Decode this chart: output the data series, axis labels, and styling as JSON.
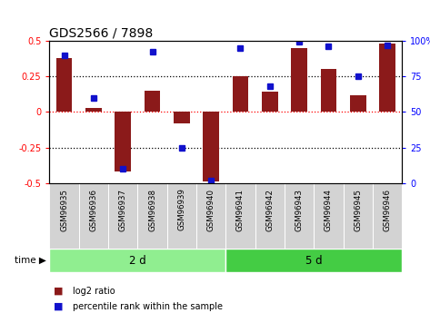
{
  "title": "GDS2566 / 7898",
  "samples": [
    "GSM96935",
    "GSM96936",
    "GSM96937",
    "GSM96938",
    "GSM96939",
    "GSM96940",
    "GSM96941",
    "GSM96942",
    "GSM96943",
    "GSM96944",
    "GSM96945",
    "GSM96946"
  ],
  "log2_ratio": [
    0.38,
    0.03,
    -0.42,
    0.15,
    -0.08,
    -0.49,
    0.25,
    0.14,
    0.45,
    0.3,
    0.12,
    0.48
  ],
  "pct_rank": [
    90,
    60,
    10,
    92,
    25,
    2,
    95,
    68,
    99,
    96,
    75,
    97
  ],
  "groups": [
    {
      "label": "2 d",
      "start": 0,
      "end": 6,
      "color": "#90EE90"
    },
    {
      "label": "5 d",
      "start": 6,
      "end": 12,
      "color": "#44CC44"
    }
  ],
  "bar_color": "#8B1A1A",
  "dot_color": "#1111CC",
  "ylim_left": [
    -0.5,
    0.5
  ],
  "ylim_right": [
    0,
    100
  ],
  "yticks_left": [
    -0.5,
    -0.25,
    0.0,
    0.25,
    0.5
  ],
  "ytick_labels_left": [
    "-0.5",
    "-0.25",
    "0",
    "0.25",
    "0.5"
  ],
  "yticks_right": [
    0,
    25,
    50,
    75,
    100
  ],
  "ytick_labels_right": [
    "0",
    "25",
    "50",
    "75",
    "100%"
  ],
  "hlines": [
    -0.25,
    0.0,
    0.25
  ],
  "legend_items": [
    {
      "label": "log2 ratio",
      "color": "#8B1A1A"
    },
    {
      "label": "percentile rank within the sample",
      "color": "#1111CC"
    }
  ],
  "bg_color": "#FFFFFF",
  "bar_width": 0.55,
  "dot_size": 5
}
